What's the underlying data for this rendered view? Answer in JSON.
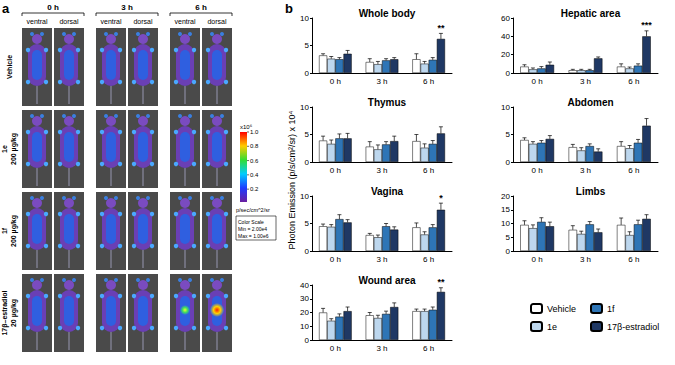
{
  "panel_a": {
    "label": "a",
    "time_points": [
      "0 h",
      "3 h",
      "6 h"
    ],
    "views": [
      "ventral",
      "dorsal"
    ],
    "rows": [
      [
        "Vehicle"
      ],
      [
        "1e",
        "200 µg/kg"
      ],
      [
        "1f",
        "200 µg/kg"
      ],
      [
        "17β–estradiol",
        "20 µg/kg"
      ]
    ],
    "color_scale": {
      "exponent_label": "x10⁶",
      "unit": "p/sec/cm^2/sr",
      "range": [
        0.02,
        1.0
      ],
      "ticks": [
        {
          "value": 1.0,
          "label": "1.0"
        },
        {
          "value": 0.8,
          "label": "0.8"
        },
        {
          "value": 0.6,
          "label": "0.6"
        },
        {
          "value": 0.4,
          "label": "0.4"
        },
        {
          "value": 0.2,
          "label": "0.2"
        }
      ],
      "box": [
        "Color Scale",
        "Min = 2.00e4",
        "Max = 1.00e6"
      ]
    }
  },
  "panel_b": {
    "label": "b",
    "y_label": "Photon Emission (p/s/cm²/sr) x 10⁴",
    "legend": "lower right"
  },
  "chart_data": [
    {
      "type": "bar",
      "title": "Whole body",
      "categories": [
        "0 h",
        "3 h",
        "6 h"
      ],
      "ylim": [
        0,
        10
      ],
      "yticks": [
        0,
        5,
        10
      ],
      "grid": false,
      "series": [
        {
          "name": "Vehicle",
          "color": "#ffffff",
          "values": [
            3.2,
            2.0,
            2.5
          ],
          "errors": [
            0.3,
            0.6,
            1.0
          ]
        },
        {
          "name": "1e",
          "color": "#bdd7ee",
          "values": [
            2.6,
            1.6,
            1.7
          ],
          "errors": [
            0.4,
            0.5,
            0.4
          ]
        },
        {
          "name": "1f",
          "color": "#2e75b6",
          "values": [
            2.5,
            2.3,
            2.4
          ],
          "errors": [
            0.3,
            0.3,
            0.4
          ]
        },
        {
          "name": "17β-estradiol",
          "color": "#1f3864",
          "values": [
            3.5,
            2.5,
            6.2
          ],
          "errors": [
            0.6,
            0.3,
            1.0
          ]
        }
      ],
      "annotations": [
        {
          "category": "6 h",
          "series": "17β-estradiol",
          "text": "**"
        }
      ]
    },
    {
      "type": "bar",
      "title": "Hepatic area",
      "categories": [
        "0 h",
        "3 h",
        "6 h"
      ],
      "ylim": [
        0,
        60
      ],
      "yticks": [
        0,
        20,
        40,
        60
      ],
      "grid": false,
      "series": [
        {
          "name": "Vehicle",
          "color": "#ffffff",
          "values": [
            7,
            3,
            7
          ],
          "errors": [
            2,
            1,
            3
          ]
        },
        {
          "name": "1e",
          "color": "#bdd7ee",
          "values": [
            4,
            3,
            5
          ],
          "errors": [
            1.5,
            1,
            1.5
          ]
        },
        {
          "name": "1f",
          "color": "#2e75b6",
          "values": [
            5,
            3,
            8
          ],
          "errors": [
            2,
            1,
            2
          ]
        },
        {
          "name": "17β-estradiol",
          "color": "#1f3864",
          "values": [
            9,
            16,
            40
          ],
          "errors": [
            3,
            1.5,
            6
          ]
        }
      ],
      "annotations": [
        {
          "category": "6 h",
          "series": "17β-estradiol",
          "text": "***"
        }
      ]
    },
    {
      "type": "bar",
      "title": "Thymus",
      "categories": [
        "0 h",
        "3 h",
        "6 h"
      ],
      "ylim": [
        0,
        10
      ],
      "yticks": [
        0,
        5,
        10
      ],
      "grid": false,
      "series": [
        {
          "name": "Vehicle",
          "color": "#ffffff",
          "values": [
            3.9,
            2.8,
            3.8
          ],
          "errors": [
            0.8,
            0.9,
            1.2
          ]
        },
        {
          "name": "1e",
          "color": "#bdd7ee",
          "values": [
            3.3,
            2.3,
            2.6
          ],
          "errors": [
            0.7,
            0.8,
            0.7
          ]
        },
        {
          "name": "1f",
          "color": "#2e75b6",
          "values": [
            4.3,
            3.2,
            3.3
          ],
          "errors": [
            0.8,
            0.5,
            0.6
          ]
        },
        {
          "name": "17β-estradiol",
          "color": "#1f3864",
          "values": [
            4.3,
            3.8,
            5.2
          ],
          "errors": [
            0.9,
            0.9,
            1.2
          ]
        }
      ],
      "annotations": []
    },
    {
      "type": "bar",
      "title": "Abdomen",
      "categories": [
        "0 h",
        "3 h",
        "6 h"
      ],
      "ylim": [
        0,
        10
      ],
      "yticks": [
        0,
        5,
        10
      ],
      "grid": false,
      "series": [
        {
          "name": "Vehicle",
          "color": "#ffffff",
          "values": [
            4.0,
            2.7,
            2.9
          ],
          "errors": [
            0.4,
            0.5,
            0.8
          ]
        },
        {
          "name": "1e",
          "color": "#bdd7ee",
          "values": [
            3.3,
            2.1,
            2.5
          ],
          "errors": [
            0.4,
            0.5,
            0.5
          ]
        },
        {
          "name": "1f",
          "color": "#2e75b6",
          "values": [
            3.5,
            2.9,
            3.5
          ],
          "errors": [
            0.4,
            0.4,
            0.6
          ]
        },
        {
          "name": "17β-estradiol",
          "color": "#1f3864",
          "values": [
            4.2,
            1.9,
            6.6
          ],
          "errors": [
            0.6,
            0.5,
            1.3
          ]
        }
      ],
      "annotations": []
    },
    {
      "type": "bar",
      "title": "Vagina",
      "categories": [
        "0 h",
        "3 h",
        "6 h"
      ],
      "ylim": [
        0,
        10
      ],
      "yticks": [
        0,
        5,
        10
      ],
      "grid": false,
      "series": [
        {
          "name": "Vehicle",
          "color": "#ffffff",
          "values": [
            4.5,
            2.9,
            4.3
          ],
          "errors": [
            0.4,
            0.3,
            0.8
          ]
        },
        {
          "name": "1e",
          "color": "#bdd7ee",
          "values": [
            4.4,
            2.5,
            3.0
          ],
          "errors": [
            0.4,
            0.4,
            0.5
          ]
        },
        {
          "name": "1f",
          "color": "#2e75b6",
          "values": [
            5.8,
            4.5,
            4.3
          ],
          "errors": [
            0.8,
            0.5,
            0.5
          ]
        },
        {
          "name": "17β-estradiol",
          "color": "#1f3864",
          "values": [
            5.2,
            3.9,
            7.5
          ],
          "errors": [
            0.5,
            0.5,
            1.2
          ]
        }
      ],
      "annotations": [
        {
          "category": "6 h",
          "series": "17β-estradiol",
          "text": "*"
        }
      ]
    },
    {
      "type": "bar",
      "title": "Limbs",
      "categories": [
        "0 h",
        "3 h",
        "6 h"
      ],
      "ylim": [
        0,
        20
      ],
      "yticks": [
        0,
        5,
        10,
        15,
        20
      ],
      "grid": false,
      "series": [
        {
          "name": "Vehicle",
          "color": "#ffffff",
          "values": [
            9.5,
            7.7,
            9.5
          ],
          "errors": [
            1.5,
            1.5,
            2.5
          ]
        },
        {
          "name": "1e",
          "color": "#bdd7ee",
          "values": [
            8.3,
            6.2,
            5.8
          ],
          "errors": [
            1.2,
            1.0,
            1.2
          ]
        },
        {
          "name": "1f",
          "color": "#2e75b6",
          "values": [
            10.6,
            9.7,
            9.7
          ],
          "errors": [
            1.5,
            1.0,
            1.5
          ]
        },
        {
          "name": "17β-estradiol",
          "color": "#1f3864",
          "values": [
            9.0,
            6.8,
            11.7
          ],
          "errors": [
            1.5,
            1.2,
            1.5
          ]
        }
      ],
      "annotations": []
    },
    {
      "type": "bar",
      "title": "Wound area",
      "categories": [
        "0 h",
        "3 h",
        "6 h"
      ],
      "ylim": [
        0,
        40
      ],
      "yticks": [
        0,
        10,
        20,
        30,
        40
      ],
      "grid": false,
      "series": [
        {
          "name": "Vehicle",
          "color": "#ffffff",
          "values": [
            20,
            18,
            21
          ],
          "errors": [
            3,
            2,
            1.5
          ]
        },
        {
          "name": "1e",
          "color": "#bdd7ee",
          "values": [
            14,
            16,
            21
          ],
          "errors": [
            1.5,
            2,
            1.5
          ]
        },
        {
          "name": "1f",
          "color": "#2e75b6",
          "values": [
            17,
            19,
            22
          ],
          "errors": [
            2,
            2,
            2
          ]
        },
        {
          "name": "17β-estradiol",
          "color": "#1f3864",
          "values": [
            21,
            24,
            35
          ],
          "errors": [
            3,
            3,
            3
          ]
        }
      ],
      "annotations": [
        {
          "category": "6 h",
          "series": "17β-estradiol",
          "text": "**"
        }
      ]
    }
  ]
}
